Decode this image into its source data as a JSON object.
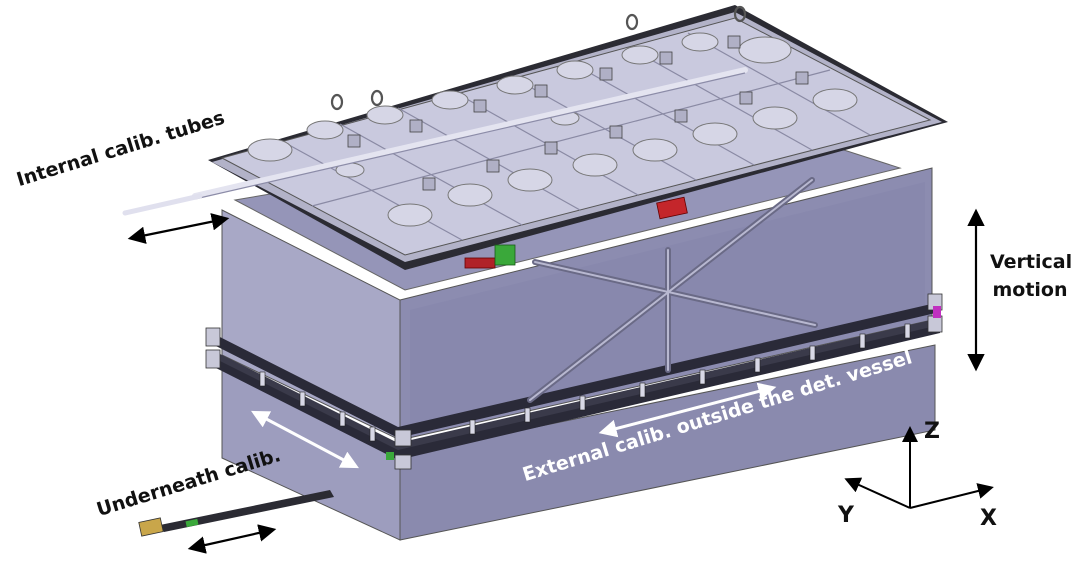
{
  "labels": {
    "internal_calib": "Internal calib. tubes",
    "underneath_calib": "Underneath calib.",
    "external_calib": "External calib. outside the det. vessel",
    "vertical_motion_line1": "Vertical",
    "vertical_motion_line2": "motion"
  },
  "axes": {
    "z": "Z",
    "y": "Y",
    "x": "X"
  },
  "colors": {
    "vessel_front": "#8f8fb3",
    "vessel_side": "#a6a6c4",
    "vessel_top": "#c4c4dc",
    "lid_top": "#c9c9de",
    "rail": "#2a2a38",
    "accent_red": "#c4262b",
    "accent_green": "#3aa83a",
    "accent_magenta": "#c030c0",
    "arrow_white": "#ffffff",
    "arrow_black": "#000000"
  },
  "icons": [
    "double-arrow-icon",
    "axis-triad-icon",
    "lifting-eye-icon"
  ]
}
